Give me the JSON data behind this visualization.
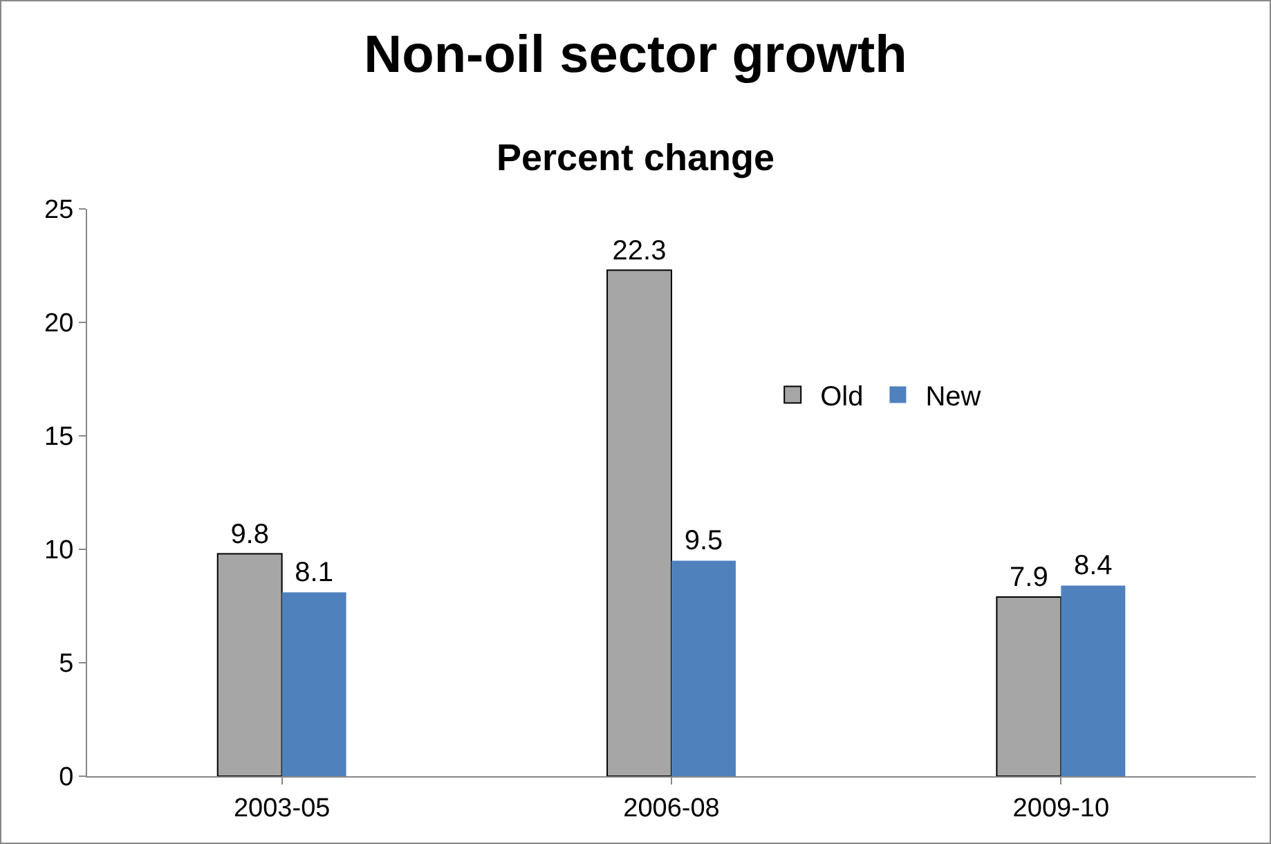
{
  "chart_data": {
    "type": "bar",
    "title": "Non-oil sector growth",
    "subtitle": "Percent change",
    "categories": [
      "2003-05",
      "2006-08",
      "2009-10"
    ],
    "series": [
      {
        "name": "Old",
        "color": "#a6a6a6",
        "values": [
          9.8,
          22.3,
          7.9
        ]
      },
      {
        "name": "New",
        "color": "#4f81bd",
        "values": [
          8.1,
          9.5,
          8.4
        ]
      }
    ],
    "ylim": [
      0,
      25
    ],
    "yticks": [
      0,
      5,
      10,
      15,
      20,
      25
    ],
    "grid": false,
    "legend": "right",
    "data_labels": true
  }
}
